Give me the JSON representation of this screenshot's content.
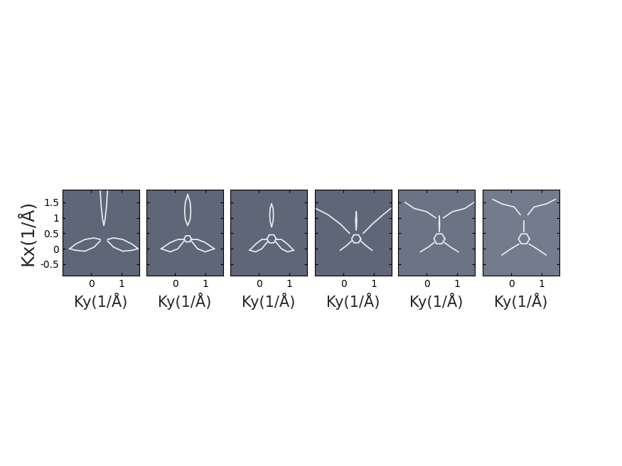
{
  "chart_data": [
    {
      "type": "line",
      "x_label": "Ky(1/Å)",
      "y_label": "Kx(1/Å)",
      "xlim": [
        -0.93,
        1.58
      ],
      "ylim": [
        -0.87,
        1.91
      ],
      "xticks": [
        0,
        1
      ],
      "yticks": [
        -0.5,
        0,
        0.5,
        1,
        1.5
      ],
      "color": "#5f6678",
      "series": [
        {
          "color": "#e6e9ef",
          "x": [
            0.3,
            0.33,
            0.38,
            0.42,
            0.46,
            0.51,
            0.54
          ],
          "values": [
            1.91,
            1.4,
            0.95,
            0.75,
            0.95,
            1.4,
            1.91
          ]
        },
        {
          "color": "#e6e9ef",
          "x": [
            0.3,
            0.1,
            -0.2,
            -0.5,
            -0.7
          ],
          "values": [
            0.3,
            0.35,
            0.3,
            0.15,
            0.0
          ]
        },
        {
          "color": "#e6e9ef",
          "x": [
            0.3,
            0.1,
            -0.2,
            -0.5,
            -0.7
          ],
          "values": [
            0.25,
            0.05,
            -0.08,
            -0.05,
            0.0
          ]
        },
        {
          "color": "#e6e9ef",
          "x": [
            0.54,
            0.74,
            1.04,
            1.34,
            1.54
          ],
          "values": [
            0.3,
            0.35,
            0.3,
            0.15,
            0.0
          ]
        },
        {
          "color": "#e6e9ef",
          "x": [
            0.54,
            0.74,
            1.04,
            1.34,
            1.54
          ],
          "values": [
            0.25,
            0.05,
            -0.08,
            -0.05,
            0.0
          ]
        }
      ]
    },
    {
      "type": "line",
      "x_label": "Ky(1/Å)",
      "xlim": [
        -0.93,
        1.58
      ],
      "ylim": [
        -0.87,
        1.91
      ],
      "xticks": [
        0,
        1
      ],
      "yticks": [
        -0.5,
        0,
        0.5,
        1,
        1.5
      ],
      "tick_labels": "x",
      "color": "#5f6678",
      "series": [
        {
          "color": "#e6e9ef",
          "x": [
            0.42,
            0.34,
            0.32,
            0.34,
            0.42,
            0.5,
            0.52,
            0.5,
            0.42
          ],
          "values": [
            1.75,
            1.5,
            1.2,
            0.95,
            0.75,
            0.95,
            1.2,
            1.5,
            1.75
          ]
        },
        {
          "color": "#e6e9ef",
          "x": [
            0.3,
            0.1,
            -0.15,
            -0.45
          ],
          "values": [
            0.3,
            0.3,
            0.2,
            0.0
          ]
        },
        {
          "color": "#e6e9ef",
          "x": [
            0.3,
            0.1,
            -0.15,
            -0.45
          ],
          "values": [
            0.25,
            0.0,
            -0.1,
            0.0
          ]
        },
        {
          "color": "#e6e9ef",
          "x": [
            0.54,
            0.74,
            0.99,
            1.29
          ],
          "values": [
            0.3,
            0.3,
            0.2,
            0.0
          ]
        },
        {
          "color": "#e6e9ef",
          "x": [
            0.54,
            0.74,
            0.99,
            1.29
          ],
          "values": [
            0.25,
            0.0,
            -0.1,
            0.0
          ]
        },
        {
          "color": "#e6e9ef",
          "x": [
            0.54,
            0.48,
            0.36,
            0.3,
            0.36,
            0.48,
            0.54
          ],
          "values": [
            0.32,
            0.42,
            0.42,
            0.32,
            0.22,
            0.22,
            0.32
          ]
        }
      ]
    },
    {
      "type": "line",
      "x_label": "Ky(1/Å)",
      "xlim": [
        -0.93,
        1.58
      ],
      "ylim": [
        -0.87,
        1.91
      ],
      "xticks": [
        0,
        1
      ],
      "yticks": [
        -0.5,
        0,
        0.5,
        1,
        1.5
      ],
      "tick_labels": "x",
      "color": "#5f6678",
      "series": [
        {
          "color": "#e6e9ef",
          "x": [
            0.42,
            0.37,
            0.36,
            0.37,
            0.42,
            0.47,
            0.48,
            0.47,
            0.42
          ],
          "values": [
            1.45,
            1.3,
            1.1,
            0.9,
            0.7,
            0.9,
            1.1,
            1.3,
            1.45
          ]
        },
        {
          "color": "#e6e9ef",
          "x": [
            0.28,
            0.1,
            -0.1,
            -0.3
          ],
          "values": [
            0.3,
            0.3,
            0.15,
            -0.05
          ]
        },
        {
          "color": "#e6e9ef",
          "x": [
            0.28,
            0.1,
            -0.1,
            -0.3
          ],
          "values": [
            0.22,
            0.0,
            -0.1,
            -0.05
          ]
        },
        {
          "color": "#e6e9ef",
          "x": [
            0.56,
            0.74,
            0.94,
            1.14
          ],
          "values": [
            0.3,
            0.3,
            0.15,
            -0.05
          ]
        },
        {
          "color": "#e6e9ef",
          "x": [
            0.56,
            0.74,
            0.94,
            1.14
          ],
          "values": [
            0.22,
            0.0,
            -0.1,
            -0.05
          ]
        },
        {
          "color": "#e6e9ef",
          "x": [
            0.57,
            0.495,
            0.345,
            0.27,
            0.345,
            0.495,
            0.57
          ],
          "values": [
            0.32,
            0.45,
            0.45,
            0.32,
            0.19,
            0.19,
            0.32
          ]
        }
      ]
    },
    {
      "type": "line",
      "x_label": "Ky(1/Å)",
      "xlim": [
        -0.93,
        1.58
      ],
      "ylim": [
        -0.87,
        1.91
      ],
      "xticks": [
        0,
        1
      ],
      "yticks": [
        -0.5,
        0,
        0.5,
        1,
        1.5
      ],
      "tick_labels": "x",
      "color": "#5f6678",
      "series": [
        {
          "color": "#e6e9ef",
          "x": [
            0.42,
            0.4,
            0.42,
            0.44,
            0.42
          ],
          "values": [
            1.2,
            0.9,
            0.6,
            0.9,
            1.2
          ]
        },
        {
          "color": "#e6e9ef",
          "x": [
            0.27,
            0.1,
            -0.1
          ],
          "values": [
            0.25,
            0.1,
            -0.05
          ]
        },
        {
          "color": "#e6e9ef",
          "x": [
            0.57,
            0.74,
            0.94
          ],
          "values": [
            0.25,
            0.1,
            -0.05
          ]
        },
        {
          "color": "#e6e9ef",
          "x": [
            -0.9,
            -0.5,
            -0.1,
            0.2
          ],
          "values": [
            1.3,
            1.1,
            0.8,
            0.5
          ]
        },
        {
          "color": "#e6e9ef",
          "x": [
            1.55,
            1.3,
            0.95,
            0.65
          ],
          "values": [
            1.3,
            1.1,
            0.8,
            0.5
          ]
        },
        {
          "color": "#e6e9ef",
          "x": [
            0.57,
            0.495,
            0.345,
            0.27,
            0.345,
            0.495,
            0.57
          ],
          "values": [
            0.32,
            0.45,
            0.45,
            0.32,
            0.19,
            0.19,
            0.32
          ]
        }
      ]
    },
    {
      "type": "line",
      "x_label": "Ky(1/Å)",
      "xlim": [
        -0.93,
        1.58
      ],
      "ylim": [
        -0.87,
        1.91
      ],
      "xticks": [
        0,
        1
      ],
      "yticks": [
        -0.5,
        0,
        0.5,
        1,
        1.5
      ],
      "tick_labels": "x",
      "color": "#6b7384",
      "series": [
        {
          "color": "#e6e9ef",
          "x": [
            0.42,
            0.41,
            0.42,
            0.43,
            0.42
          ],
          "values": [
            1.05,
            0.8,
            0.55,
            0.8,
            1.05
          ]
        },
        {
          "color": "#e6e9ef",
          "x": [
            0.25,
            0.05,
            -0.2
          ],
          "values": [
            0.2,
            0.05,
            -0.1
          ]
        },
        {
          "color": "#e6e9ef",
          "x": [
            0.59,
            0.79,
            1.04
          ],
          "values": [
            0.2,
            0.05,
            -0.1
          ]
        },
        {
          "color": "#e6e9ef",
          "x": [
            -0.7,
            -0.4,
            0.0,
            0.3
          ],
          "values": [
            1.5,
            1.3,
            1.2,
            1.0
          ]
        },
        {
          "color": "#e6e9ef",
          "x": [
            1.55,
            1.25,
            0.85,
            0.55
          ],
          "values": [
            1.5,
            1.3,
            1.2,
            1.0
          ]
        },
        {
          "color": "#e6e9ef",
          "x": [
            0.6,
            0.51,
            0.33,
            0.24,
            0.33,
            0.51,
            0.6
          ],
          "values": [
            0.32,
            0.48,
            0.48,
            0.32,
            0.16,
            0.16,
            0.32
          ]
        }
      ]
    },
    {
      "type": "line",
      "x_label": "Ky(1/Å)",
      "xlim": [
        -0.93,
        1.58
      ],
      "ylim": [
        -0.87,
        1.91
      ],
      "xticks": [
        0,
        1
      ],
      "yticks": [
        -0.5,
        0,
        0.5,
        1,
        1.5
      ],
      "tick_labels": "x",
      "color": "#737b8c",
      "series": [
        {
          "color": "#e6e9ef",
          "x": [
            0.42,
            0.42
          ],
          "values": [
            0.9,
            0.55
          ]
        },
        {
          "color": "#e6e9ef",
          "x": [
            0.25,
            0.0,
            -0.3
          ],
          "values": [
            0.15,
            0.0,
            -0.2
          ]
        },
        {
          "color": "#e6e9ef",
          "x": [
            0.59,
            0.84,
            1.14
          ],
          "values": [
            0.15,
            0.0,
            -0.2
          ]
        },
        {
          "color": "#e6e9ef",
          "x": [
            -0.6,
            -0.3,
            0.1,
            0.3
          ],
          "values": [
            1.6,
            1.45,
            1.35,
            1.1
          ]
        },
        {
          "color": "#e6e9ef",
          "x": [
            1.45,
            1.15,
            0.75,
            0.55
          ],
          "values": [
            1.6,
            1.45,
            1.35,
            1.1
          ]
        },
        {
          "color": "#e6e9ef",
          "x": [
            0.6,
            0.51,
            0.33,
            0.24,
            0.33,
            0.51,
            0.6
          ],
          "values": [
            0.32,
            0.48,
            0.48,
            0.32,
            0.16,
            0.16,
            0.32
          ]
        }
      ]
    }
  ]
}
